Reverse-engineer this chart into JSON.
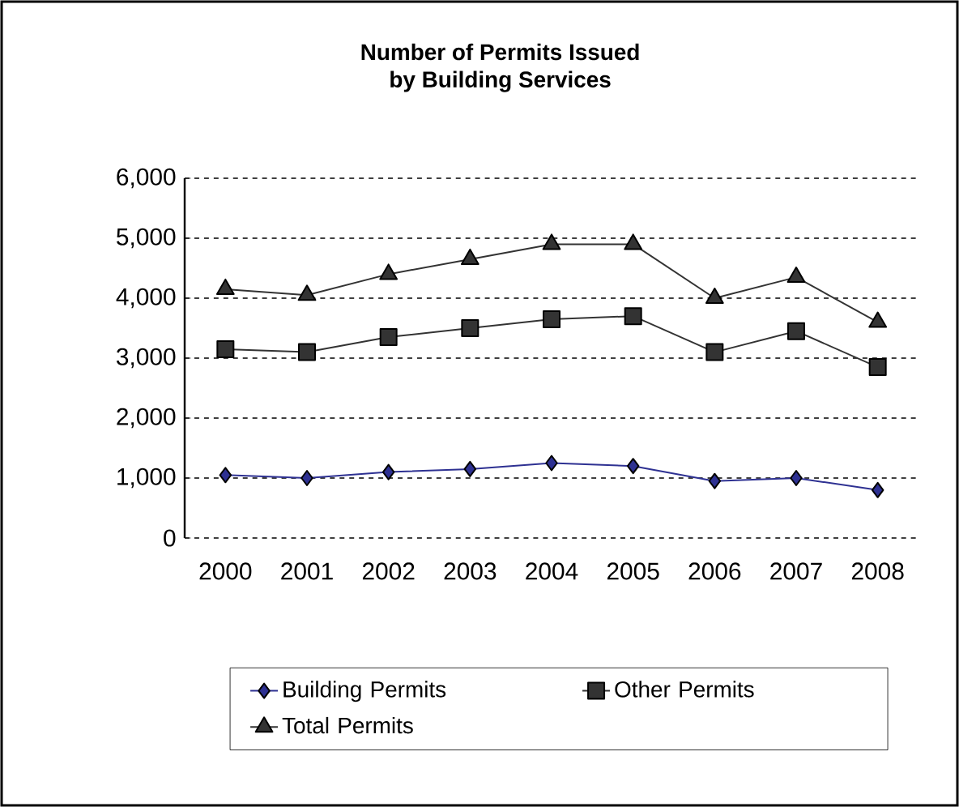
{
  "chart_data": {
    "type": "line",
    "title": "Number of Permits Issued\nby Building Services",
    "categories": [
      "2000",
      "2001",
      "2002",
      "2003",
      "2004",
      "2005",
      "2006",
      "2007",
      "2008"
    ],
    "series": [
      {
        "name": "Building Permits",
        "color": "#2e3192",
        "marker": "diamond",
        "values": [
          1050,
          1000,
          1100,
          1150,
          1250,
          1200,
          950,
          1000,
          800
        ]
      },
      {
        "name": "Other Permits",
        "color": "#333333",
        "marker": "square",
        "values": [
          3150,
          3100,
          3350,
          3500,
          3650,
          3700,
          3100,
          3450,
          2850
        ]
      },
      {
        "name": "Total Permits",
        "color": "#333333",
        "marker": "triangle",
        "values": [
          4150,
          4050,
          4400,
          4650,
          4900,
          4900,
          4000,
          4350,
          3600
        ]
      }
    ],
    "ylim": [
      0,
      6000
    ],
    "yticks": [
      {
        "value": 0,
        "label": "0"
      },
      {
        "value": 1000,
        "label": "1,000"
      },
      {
        "value": 2000,
        "label": "2,000"
      },
      {
        "value": 3000,
        "label": "3,000"
      },
      {
        "value": 4000,
        "label": "4,000"
      },
      {
        "value": 5000,
        "label": "5,000"
      },
      {
        "value": 6000,
        "label": "6,000"
      }
    ],
    "grid": "y",
    "legend": "bottom",
    "line_style": "solid"
  }
}
